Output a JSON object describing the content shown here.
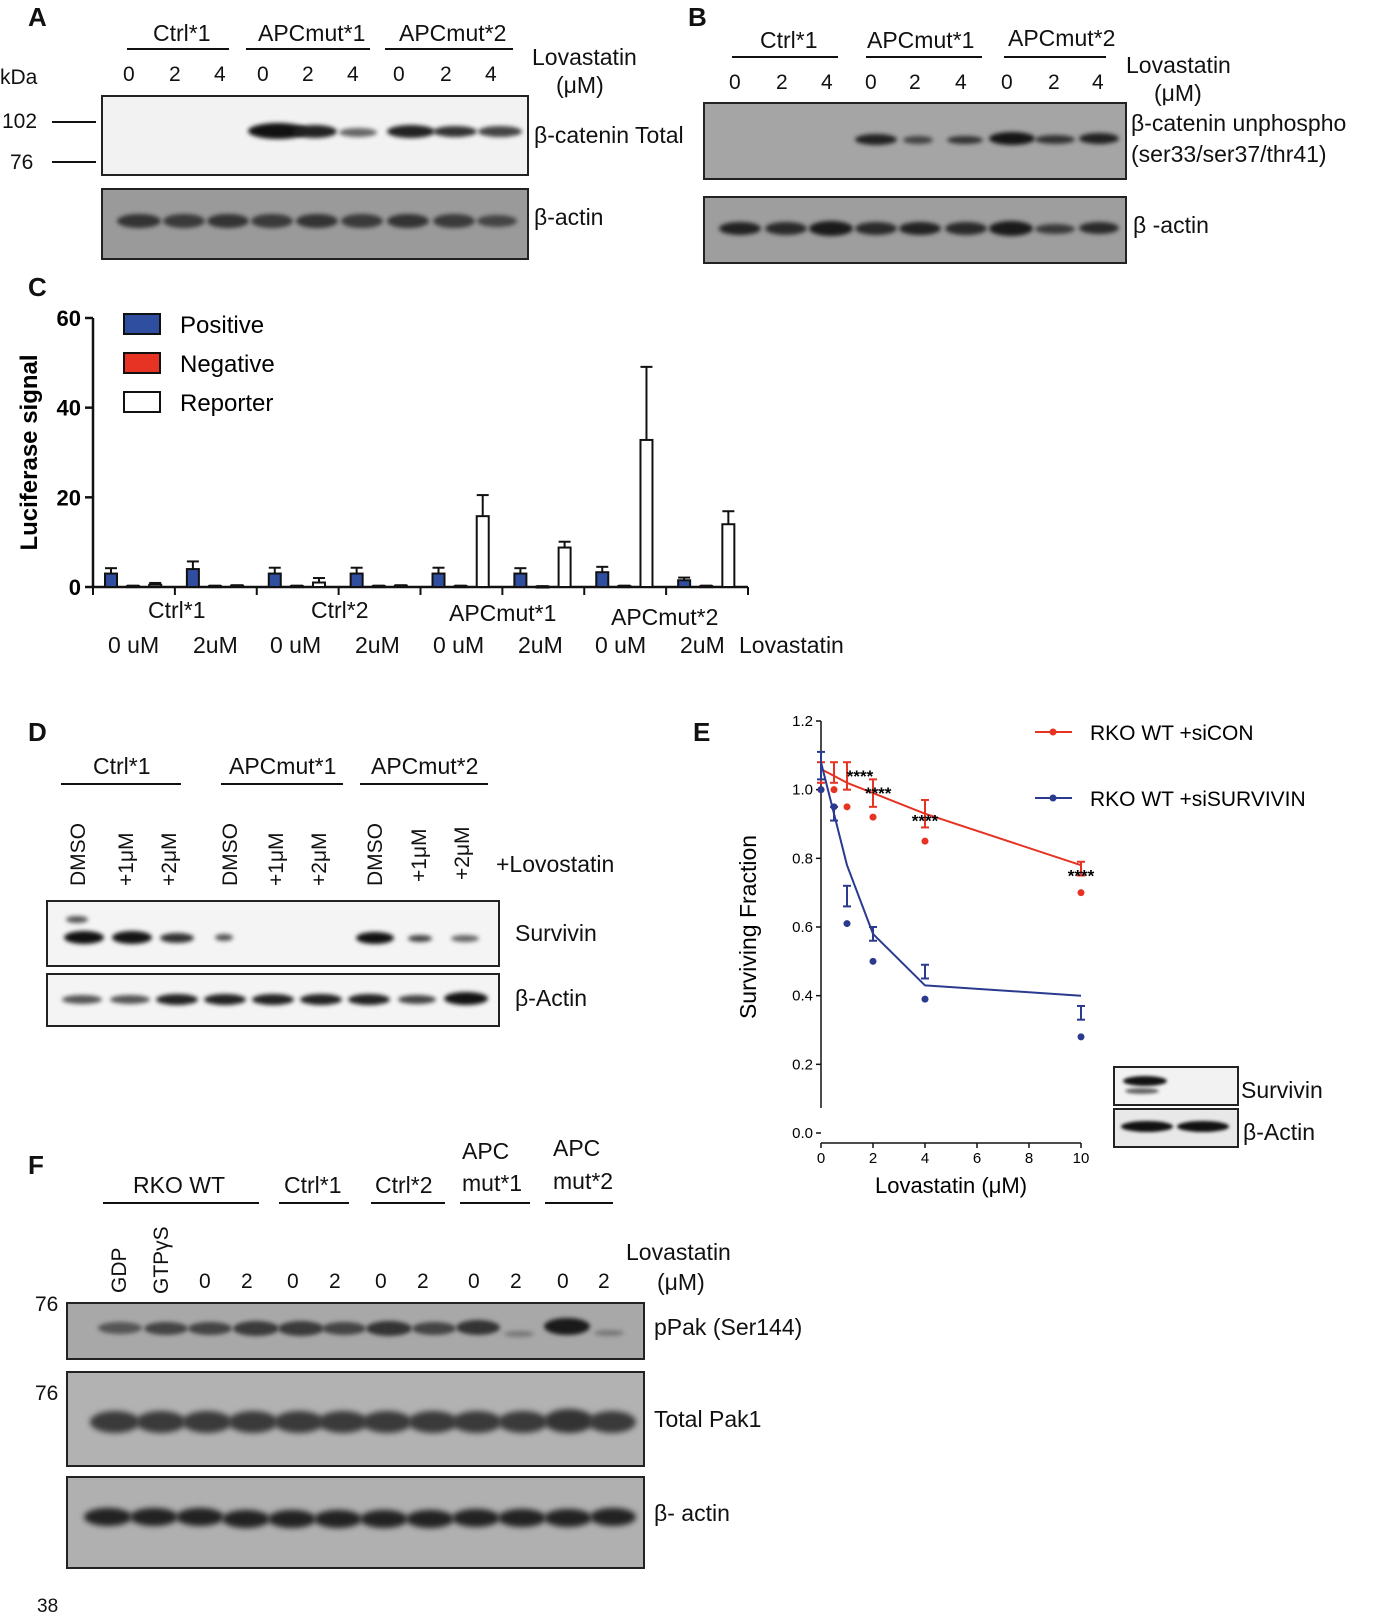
{
  "panelA": {
    "label": "A",
    "groups": [
      "Ctrl*1",
      "APCmut*1",
      "APCmut*2"
    ],
    "lanes": [
      "0",
      "2",
      "4",
      "0",
      "2",
      "4",
      "0",
      "2",
      "4"
    ],
    "kda_label": "kDa",
    "markers": [
      "102",
      "76"
    ],
    "treatment_label": "Lovastatin",
    "treatment_unit": "(μM)",
    "blots": [
      "β-catenin Total",
      "β-actin"
    ]
  },
  "panelB": {
    "label": "B",
    "groups": [
      "Ctrl*1",
      "APCmut*1",
      "APCmut*2"
    ],
    "lanes": [
      "0",
      "2",
      "4",
      "0",
      "2",
      "4",
      "0",
      "2",
      "4"
    ],
    "treatment_label": "Lovastatin",
    "treatment_unit": "(μM)",
    "blot1_line1": "β-catenin unphospho",
    "blot1_line2": "(ser33/ser37/thr41)",
    "blot2": "β -actin"
  },
  "panelC": {
    "label": "C",
    "legend": [
      {
        "name": "Positive",
        "color": "#2f4ea0"
      },
      {
        "name": "Negative",
        "color": "#e63323"
      },
      {
        "name": "Reporter",
        "color": "#ffffff"
      }
    ],
    "group_labels": [
      "Ctrl*1",
      "Ctrl*2",
      "APCmut*1",
      "APCmut*2"
    ],
    "dose_labels": [
      "0 uM",
      "2uM",
      "0 uM",
      "2uM",
      "0 uM",
      "2uM",
      "0 uM",
      "2uM"
    ],
    "treatment_label": "Lovastatin",
    "chart_data": {
      "type": "bar",
      "ylabel": "Luciferase signal",
      "xlabel": "",
      "ylim": [
        0,
        60
      ],
      "yticks": [
        "0",
        "20",
        "40",
        "60"
      ],
      "categories": [
        "Ctrl*1 0 uM",
        "Ctrl*1 2uM",
        "Ctrl*2 0 uM",
        "Ctrl*2 2uM",
        "APCmut*1 0 uM",
        "APCmut*1 2uM",
        "APCmut*2 0 uM",
        "APCmut*2 2uM"
      ],
      "series": [
        {
          "name": "Positive",
          "values": [
            3.0,
            4.0,
            3.0,
            3.0,
            3.0,
            3.0,
            3.3,
            1.5
          ],
          "errors": [
            1.2,
            1.7,
            1.3,
            1.3,
            1.3,
            1.2,
            1.2,
            0.6
          ]
        },
        {
          "name": "Negative",
          "values": [
            0.2,
            0.2,
            0.2,
            0.2,
            0.2,
            0.1,
            0.2,
            0.2
          ],
          "errors": [
            0.1,
            0.1,
            0.1,
            0.1,
            0.1,
            0.1,
            0.1,
            0.1
          ]
        },
        {
          "name": "Reporter",
          "values": [
            0.5,
            0.3,
            1.0,
            0.3,
            15.8,
            8.8,
            32.8,
            14.0
          ],
          "errors": [
            0.4,
            0.1,
            1.0,
            0.1,
            4.7,
            1.3,
            16.3,
            2.9
          ]
        }
      ]
    }
  },
  "panelD": {
    "label": "D",
    "groups": [
      "Ctrl*1",
      "APCmut*1",
      "APCmut*2"
    ],
    "lanes": [
      "DMSO",
      "+1μM",
      "+2μM",
      "DMSO",
      "+1μM",
      "+2μM",
      "DMSO",
      "+1μM",
      "+2μM"
    ],
    "treatment_label": "+Lovostatin",
    "blots": [
      "Survivin",
      "β-Actin"
    ]
  },
  "panelE": {
    "label": "E",
    "inset_blots": [
      "Survivin",
      "β-Actin"
    ],
    "significance": "****",
    "chart_data": {
      "type": "scatter",
      "xlabel": "Lovastatin (μM)",
      "ylabel": "Surviving Fraction",
      "xlim": [
        0,
        10
      ],
      "ylim": [
        0.0,
        1.2
      ],
      "xticks": [
        "0",
        "2",
        "4",
        "6",
        "8",
        "10"
      ],
      "yticks": [
        "0.0",
        "0.2",
        "0.4",
        "0.6",
        "0.8",
        "1.0",
        "1.2"
      ],
      "series": [
        {
          "name": "RKO WT +siCON",
          "color": "#e63323",
          "x": [
            0,
            0.5,
            1,
            2,
            4,
            10
          ],
          "points": [
            1.0,
            1.0,
            0.95,
            0.92,
            0.85,
            0.7
          ],
          "means": [
            1.05,
            1.05,
            1.04,
            0.99,
            0.93,
            0.77
          ],
          "errors": [
            0.03,
            0.03,
            0.04,
            0.04,
            0.04,
            0.02
          ],
          "fit": [
            1.06,
            1.04,
            1.02,
            0.99,
            0.93,
            0.78
          ]
        },
        {
          "name": "RKO WT +siSURVIVIN",
          "color": "#2a3a8f",
          "x": [
            0,
            0.5,
            1,
            2,
            4,
            10
          ],
          "points": [
            1.0,
            0.95,
            0.61,
            0.5,
            0.39,
            0.28
          ],
          "means": [
            1.07,
            0.93,
            0.69,
            0.58,
            0.47,
            0.35
          ],
          "errors": [
            0.04,
            0.02,
            0.03,
            0.02,
            0.02,
            0.02
          ],
          "fit": [
            1.08,
            0.93,
            0.78,
            0.58,
            0.43,
            0.4
          ]
        }
      ],
      "annotations": [
        "****",
        "****",
        "****",
        "****"
      ]
    }
  },
  "panelF": {
    "label": "F",
    "groups": [
      "RKO WT",
      "Ctrl*1",
      "Ctrl*2",
      "APC",
      "mut*1",
      "APC",
      "mut*2"
    ],
    "rot_lanes": [
      "GDP",
      "GTPγS"
    ],
    "lanes": [
      "0",
      "2",
      "0",
      "2",
      "0",
      "2",
      "0",
      "2",
      "0",
      "2"
    ],
    "treatment_label": "Lovastatin",
    "treatment_unit": "(μM)",
    "markers": [
      "76",
      "76",
      "38"
    ],
    "blots": [
      "pPak (Ser144)",
      "Total Pak1",
      "β- actin"
    ]
  }
}
